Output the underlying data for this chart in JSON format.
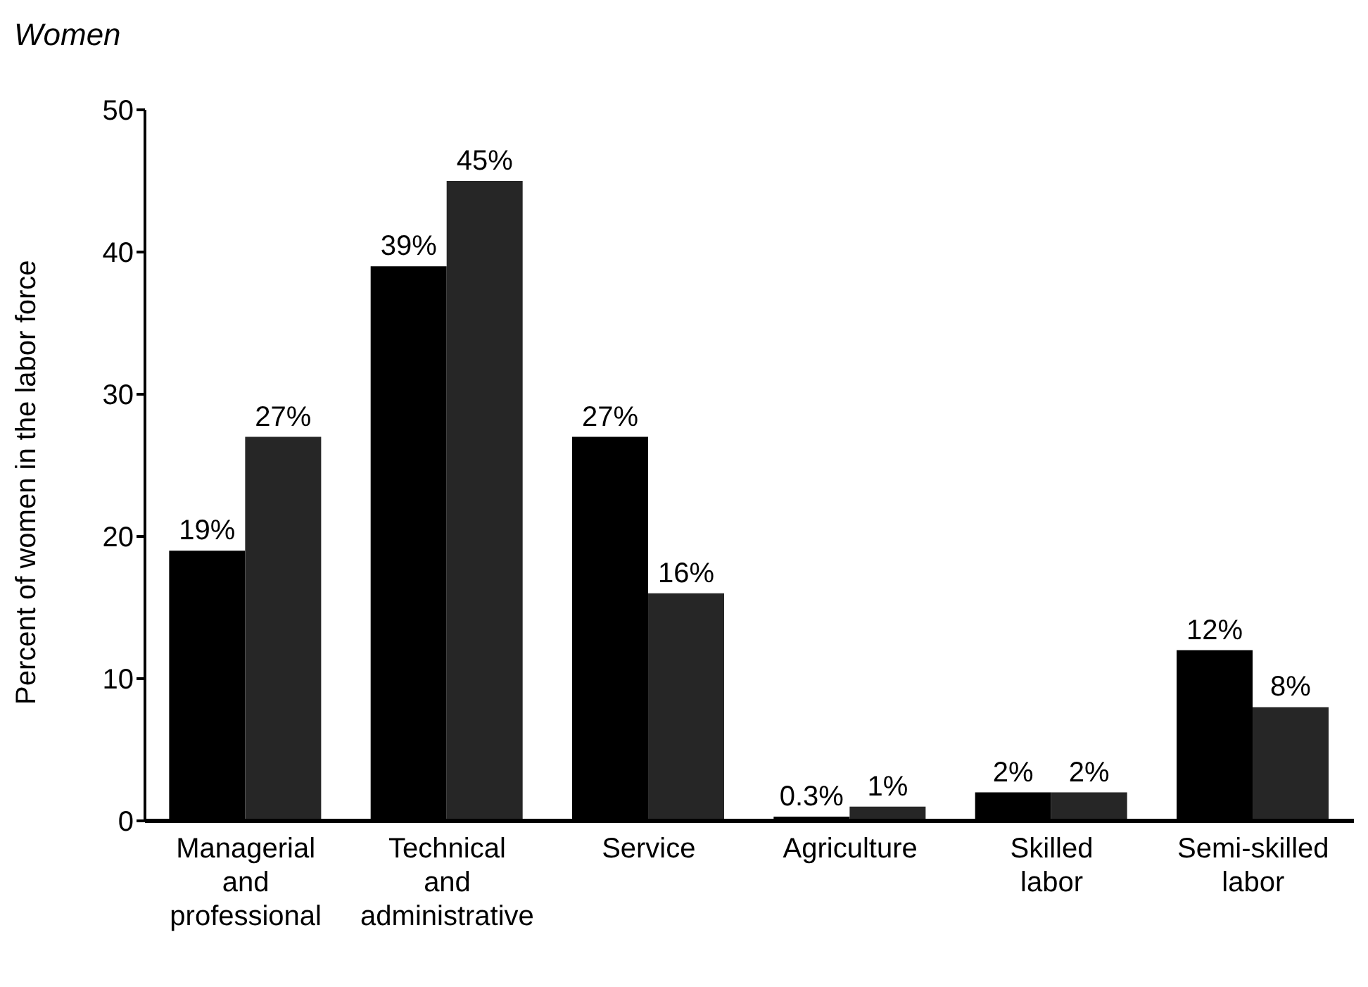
{
  "chart_data": {
    "type": "bar",
    "title": "Women",
    "ylabel": "Percent of women in the labor force",
    "categories": [
      "Managerial\nand\nprofessional",
      "Technical\nand\nadministrative",
      "Service",
      "Agriculture",
      "Skilled\nlabor",
      "Semi-skilled\nlabor"
    ],
    "series": [
      {
        "color": "#000000",
        "values": [
          19,
          39,
          27,
          0.3,
          2,
          12
        ],
        "value_labels": [
          "19%",
          "39%",
          "27%",
          "0.3%",
          "2%",
          "12%"
        ]
      },
      {
        "color": "#262626",
        "values": [
          27,
          45,
          16,
          1,
          2,
          8
        ],
        "value_labels": [
          "27%",
          "45%",
          "16%",
          "1%",
          "2%",
          "8%"
        ]
      }
    ],
    "ylim": [
      0,
      50
    ],
    "yticks": [
      0,
      10,
      20,
      30,
      40,
      50
    ],
    "grid": false,
    "legend": false
  }
}
